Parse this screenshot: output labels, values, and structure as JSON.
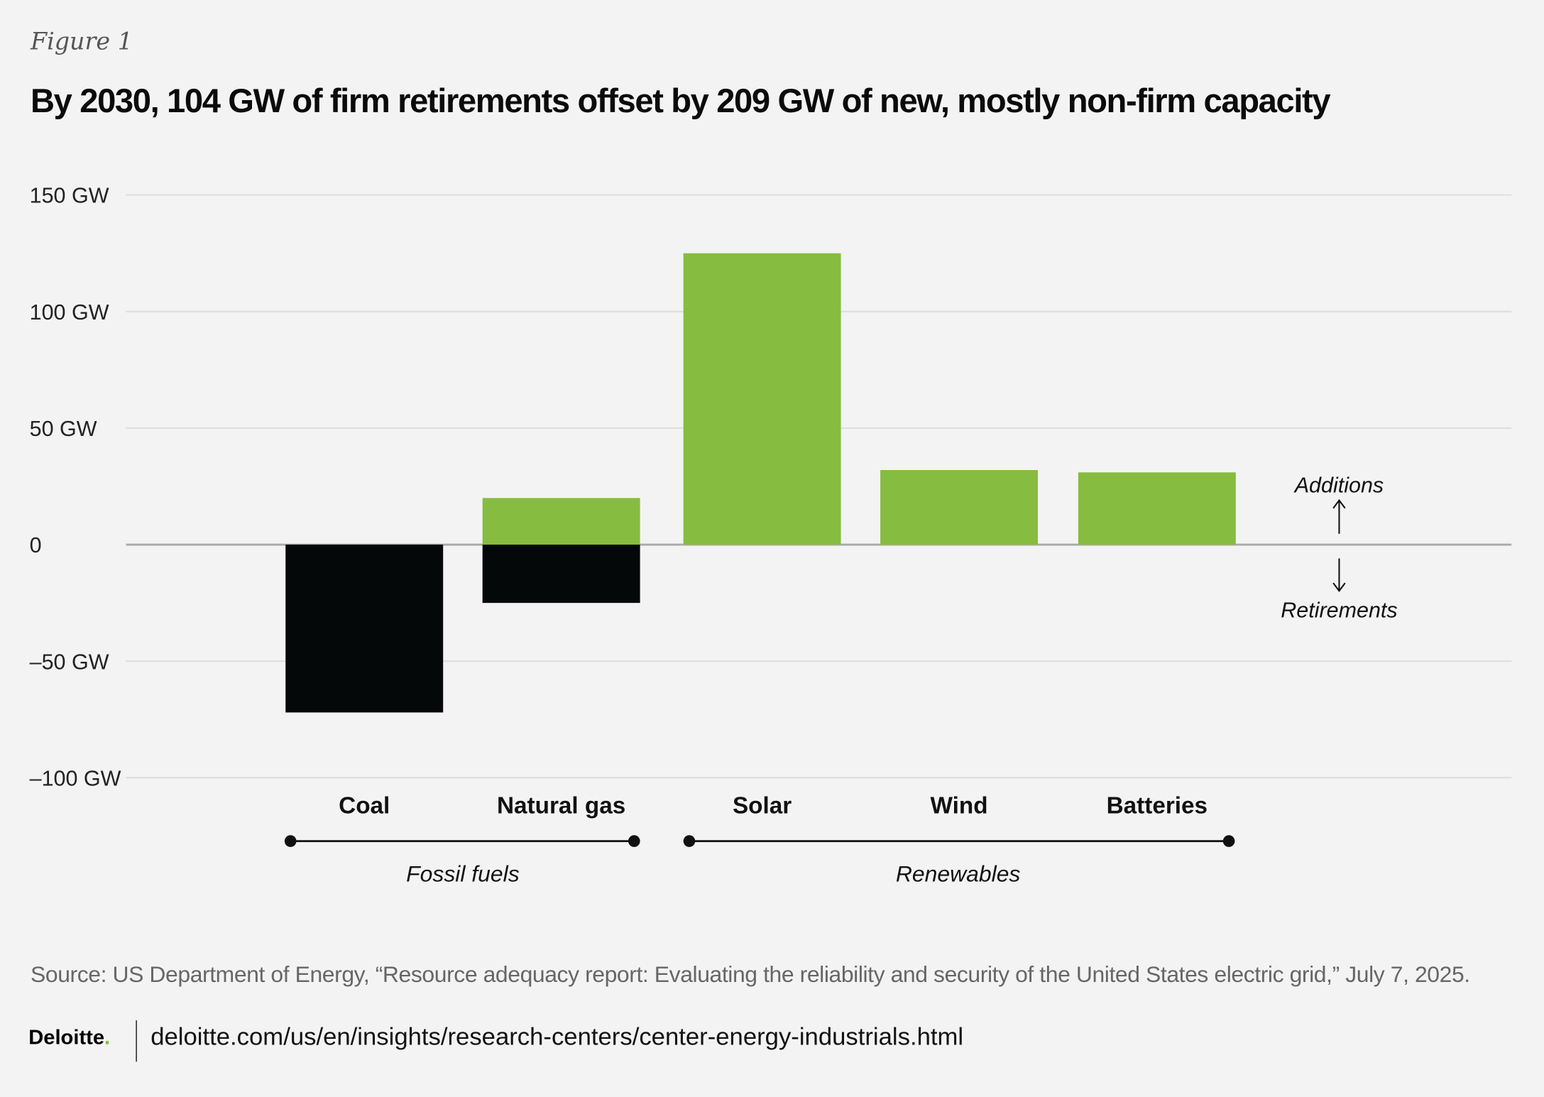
{
  "figure_label": "Figure 1",
  "chart_data": {
    "type": "bar",
    "title": "By 2030, 104 GW of firm retirements offset by 209 GW of new, mostly non-firm capacity",
    "categories": [
      "Coal",
      "Natural gas",
      "Solar",
      "Wind",
      "Batteries"
    ],
    "series": [
      {
        "name": "Additions",
        "values": [
          0,
          20,
          125,
          32,
          31
        ],
        "color": "#86bc3f"
      },
      {
        "name": "Retirements",
        "values": [
          -72,
          -25,
          0,
          0,
          0
        ],
        "color": "#050809"
      }
    ],
    "ylim": [
      -100,
      150
    ],
    "yticks": [
      150,
      100,
      50,
      0,
      -50,
      -100
    ],
    "ytick_labels": [
      "150 GW",
      "100 GW",
      "50 GW",
      "0",
      "–50 GW",
      "–100 GW"
    ],
    "grid": true,
    "groups": [
      {
        "label": "Fossil fuels",
        "categories": [
          "Coal",
          "Natural gas"
        ]
      },
      {
        "label": "Renewables",
        "categories": [
          "Solar",
          "Wind",
          "Batteries"
        ]
      }
    ],
    "annotations": {
      "up": "Additions",
      "down": "Retirements"
    }
  },
  "source": "Source: US Department of Energy, “Resource adequacy report: Evaluating the reliability and security of the United States electric grid,” July 7, 2025.",
  "footer": {
    "logo": "Deloitte",
    "url": "deloitte.com/us/en/insights/research-centers/center-energy-industrials.html"
  }
}
